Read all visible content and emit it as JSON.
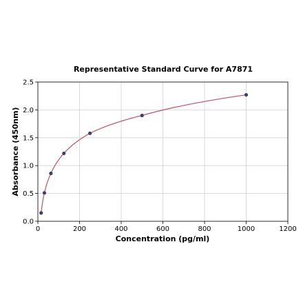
{
  "chart_data": {
    "type": "scatter",
    "title": "Representative Standard Curve for A7871",
    "xlabel": "Concentration (pg/ml)",
    "ylabel": "Absorbance (450nm)",
    "xlim": [
      0,
      1200
    ],
    "ylim": [
      0,
      2.5
    ],
    "xticks": [
      0,
      200,
      400,
      600,
      800,
      1000,
      1200
    ],
    "yticks": [
      0.0,
      0.5,
      1.0,
      1.5,
      2.0,
      2.5
    ],
    "ytick_labels": [
      "0.0",
      "0.5",
      "1.0",
      "1.5",
      "2.0",
      "2.5"
    ],
    "grid": true,
    "series": [
      {
        "points": [
          {
            "x": 15.6,
            "y": 0.15
          },
          {
            "x": 31.25,
            "y": 0.51
          },
          {
            "x": 62.5,
            "y": 0.86
          },
          {
            "x": 125,
            "y": 1.22
          },
          {
            "x": 250,
            "y": 1.58
          },
          {
            "x": 500,
            "y": 1.9
          },
          {
            "x": 1000,
            "y": 2.27
          }
        ],
        "marker_color": "#3b3f6e",
        "fit_line_color": "#c0506a"
      }
    ]
  }
}
